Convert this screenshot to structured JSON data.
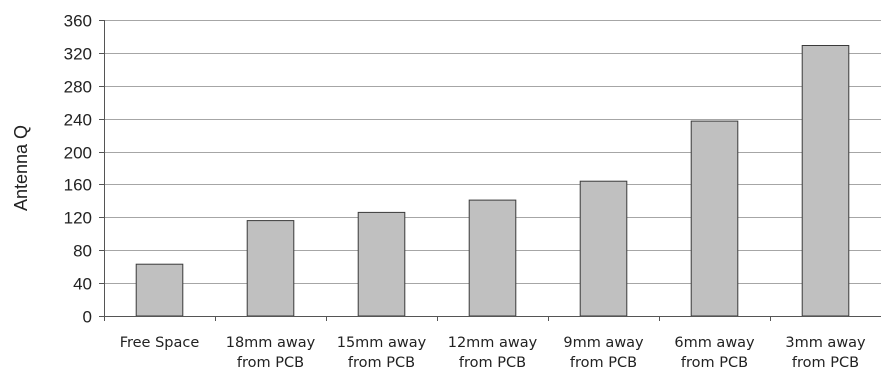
{
  "chart_data": {
    "type": "bar",
    "title": "",
    "xlabel": "",
    "ylabel": "Antenna Q",
    "ylim": [
      0,
      360
    ],
    "yticks": [
      0,
      40,
      80,
      120,
      160,
      200,
      240,
      280,
      320,
      360
    ],
    "grid": true,
    "legend": "none",
    "bar_color": "#c0c0c0",
    "categories": [
      [
        "Free Space"
      ],
      [
        "18mm away",
        "from PCB"
      ],
      [
        "15mm away",
        "from PCB"
      ],
      [
        "12mm away",
        "from PCB"
      ],
      [
        "9mm away",
        "from PCB"
      ],
      [
        "6mm away",
        "from PCB"
      ],
      [
        "3mm away",
        "from PCB"
      ]
    ],
    "values": [
      63,
      116,
      126,
      141,
      164,
      237,
      329
    ]
  }
}
